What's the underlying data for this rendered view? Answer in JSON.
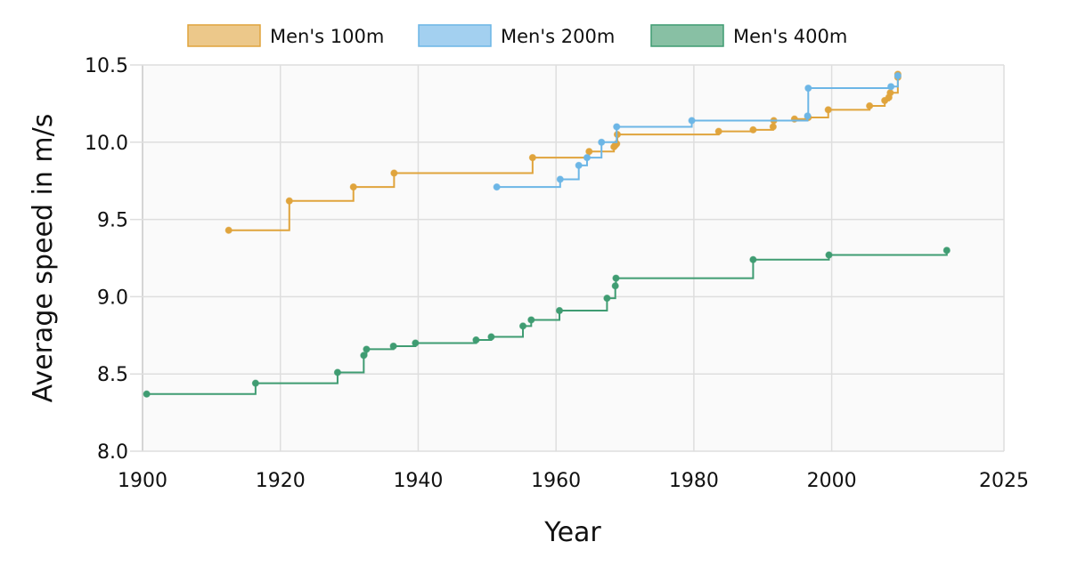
{
  "chart_data": {
    "type": "line",
    "step": "after",
    "xlabel": "Year",
    "ylabel": "Average speed in m/s",
    "xlim": [
      1900,
      2025
    ],
    "ylim": [
      8.0,
      10.5
    ],
    "xticks": [
      "1900",
      "1920",
      "1940",
      "1960",
      "1980",
      "2000",
      "2025"
    ],
    "xtick_values": [
      1900,
      1920,
      1940,
      1960,
      1980,
      2000,
      2025
    ],
    "yticks": [
      "8.0",
      "8.5",
      "9.0",
      "9.5",
      "10.0",
      "10.5"
    ],
    "ytick_values": [
      8.0,
      8.5,
      9.0,
      9.5,
      10.0,
      10.5
    ],
    "grid": true,
    "legend_position": "top",
    "series": [
      {
        "name": "Men's 100m",
        "color": "#e0a43c",
        "fill": "#ecc88a",
        "x": [
          1912.5,
          1921.3,
          1930.6,
          1936.5,
          1956.6,
          1964.8,
          1968.4,
          1968.6,
          1968.8,
          1968.9,
          1983.6,
          1988.6,
          1991.5,
          1991.6,
          1994.6,
          1996.6,
          1999.5,
          2005.5,
          2007.7,
          2008.3,
          2008.5,
          2009.6,
          2009.6
        ],
        "y": [
          9.43,
          9.62,
          9.71,
          9.8,
          9.9,
          9.94,
          9.97,
          9.98,
          9.99,
          10.05,
          10.07,
          10.08,
          10.1,
          10.14,
          10.15,
          10.16,
          10.21,
          10.235,
          10.27,
          10.29,
          10.32,
          10.42,
          10.44
        ]
      },
      {
        "name": "Men's 200m",
        "color": "#6cb6e6",
        "fill": "#a3d0f0",
        "x": [
          1951.4,
          1960.6,
          1963.3,
          1964.5,
          1966.6,
          1968.8,
          1979.7,
          1996.5,
          1996.6,
          2008.6,
          2009.6
        ],
        "y": [
          9.71,
          9.76,
          9.85,
          9.9,
          10.0,
          10.1,
          10.14,
          10.17,
          10.35,
          10.36,
          10.43
        ]
      },
      {
        "name": "Men's 400m",
        "color": "#3f9c72",
        "fill": "#88c0a4",
        "x": [
          1900.6,
          1916.4,
          1928.3,
          1932.1,
          1932.5,
          1936.4,
          1939.6,
          1948.4,
          1950.6,
          1955.2,
          1956.4,
          1960.5,
          1967.4,
          1968.6,
          1968.7,
          1988.6,
          1999.6,
          2016.7
        ],
        "y": [
          8.37,
          8.44,
          8.51,
          8.62,
          8.66,
          8.68,
          8.7,
          8.72,
          8.74,
          8.81,
          8.85,
          8.91,
          8.99,
          9.07,
          9.12,
          9.24,
          9.27,
          9.3
        ]
      }
    ]
  }
}
